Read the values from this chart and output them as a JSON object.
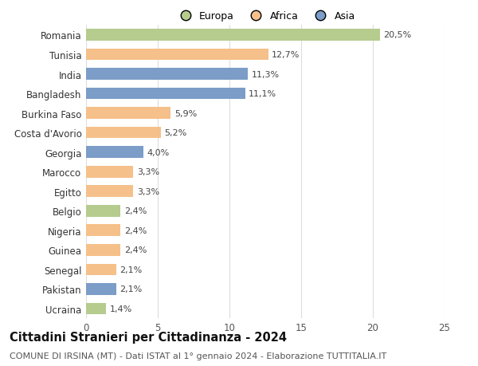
{
  "categories": [
    "Romania",
    "Tunisia",
    "India",
    "Bangladesh",
    "Burkina Faso",
    "Costa d'Avorio",
    "Georgia",
    "Marocco",
    "Egitto",
    "Belgio",
    "Nigeria",
    "Guinea",
    "Senegal",
    "Pakistan",
    "Ucraina"
  ],
  "values": [
    20.5,
    12.7,
    11.3,
    11.1,
    5.9,
    5.2,
    4.0,
    3.3,
    3.3,
    2.4,
    2.4,
    2.4,
    2.1,
    2.1,
    1.4
  ],
  "labels": [
    "20,5%",
    "12,7%",
    "11,3%",
    "11,1%",
    "5,9%",
    "5,2%",
    "4,0%",
    "3,3%",
    "3,3%",
    "2,4%",
    "2,4%",
    "2,4%",
    "2,1%",
    "2,1%",
    "1,4%"
  ],
  "continents": [
    "Europa",
    "Africa",
    "Asia",
    "Asia",
    "Africa",
    "Africa",
    "Asia",
    "Africa",
    "Africa",
    "Europa",
    "Africa",
    "Africa",
    "Africa",
    "Asia",
    "Europa"
  ],
  "colors": {
    "Europa": "#b5cc8e",
    "Africa": "#f5c08a",
    "Asia": "#7b9dc7"
  },
  "legend_order": [
    "Europa",
    "Africa",
    "Asia"
  ],
  "title": "Cittadini Stranieri per Cittadinanza - 2024",
  "subtitle": "COMUNE DI IRSINA (MT) - Dati ISTAT al 1° gennaio 2024 - Elaborazione TUTTITALIA.IT",
  "xlim": [
    0,
    25
  ],
  "xticks": [
    0,
    5,
    10,
    15,
    20,
    25
  ],
  "background_color": "#ffffff",
  "grid_color": "#dddddd",
  "bar_height": 0.6,
  "title_fontsize": 10.5,
  "subtitle_fontsize": 8.0,
  "tick_fontsize": 8.5,
  "label_fontsize": 8.0,
  "legend_fontsize": 9.0
}
